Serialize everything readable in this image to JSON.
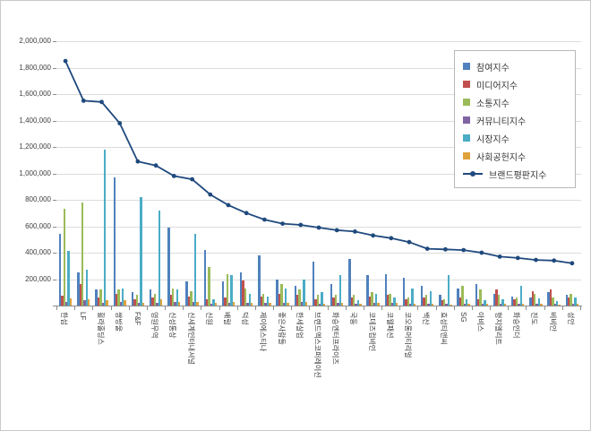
{
  "colors": {
    "background": "#FFFFFF",
    "frame": "#C9C9C9",
    "grid": "#DCDCDC",
    "axis": "#8C8C8C",
    "text": "#3F3F3F"
  },
  "chart_data": {
    "type": "bar",
    "title": "",
    "xlabel": "",
    "ylabel": "",
    "ylim": [
      0,
      2000000
    ],
    "y_tick_interval": 200000,
    "y_tick_labels": [
      "200,000",
      "400,000",
      "600,000",
      "800,000",
      "1,000,000",
      "1,200,000",
      "1,400,000",
      "1,600,000",
      "1,800,000",
      "2,000,000"
    ],
    "grid": true,
    "legend_position": "top-right",
    "categories": [
      "한섬",
      "LF",
      "휠라홀딩스",
      "쌍방울",
      "F&F",
      "영원무역",
      "신성통상",
      "신세계인터내셔널",
      "신원",
      "배럴",
      "덕성",
      "제이에스티나",
      "좋은사람들",
      "한세실업",
      "브랜드엑스코퍼레이션",
      "화승엔터프라이즈",
      "국동",
      "코데즈컴바인",
      "코웰패션",
      "코오롱머티리얼",
      "백산",
      "효성티앤씨",
      "SG",
      "아비스",
      "형지엘리트",
      "화승인더",
      "진도",
      "비비안",
      "성안"
    ],
    "series": [
      {
        "name": "참여지수",
        "color": "#4F81BD",
        "values": [
          545000,
          250000,
          120000,
          970000,
          100000,
          120000,
          590000,
          180000,
          420000,
          180000,
          250000,
          380000,
          200000,
          150000,
          330000,
          160000,
          350000,
          230000,
          240000,
          210000,
          150000,
          80000,
          130000,
          160000,
          90000,
          70000,
          60000,
          100000,
          80000
        ]
      },
      {
        "name": "미디어지수",
        "color": "#C0504D",
        "values": [
          75000,
          160000,
          60000,
          90000,
          50000,
          60000,
          80000,
          70000,
          50000,
          60000,
          190000,
          70000,
          90000,
          80000,
          50000,
          60000,
          60000,
          70000,
          80000,
          50000,
          60000,
          40000,
          60000,
          50000,
          120000,
          50000,
          110000,
          120000,
          60000
        ]
      },
      {
        "name": "소통지수",
        "color": "#9BBB59",
        "values": [
          735000,
          780000,
          120000,
          120000,
          80000,
          90000,
          130000,
          110000,
          290000,
          240000,
          130000,
          90000,
          160000,
          120000,
          80000,
          80000,
          80000,
          100000,
          90000,
          60000,
          80000,
          50000,
          150000,
          120000,
          80000,
          60000,
          90000,
          60000,
          90000
        ]
      },
      {
        "name": "커뮤니티지수",
        "color": "#8064A2",
        "values": [
          25000,
          40000,
          20000,
          30000,
          20000,
          20000,
          30000,
          25000,
          15000,
          20000,
          20000,
          20000,
          20000,
          30000,
          15000,
          20000,
          15000,
          20000,
          20000,
          15000,
          15000,
          15000,
          15000,
          15000,
          15000,
          15000,
          15000,
          15000,
          15000
        ]
      },
      {
        "name": "시장지수",
        "color": "#4BACC6",
        "values": [
          415000,
          270000,
          1180000,
          130000,
          820000,
          720000,
          120000,
          540000,
          45000,
          230000,
          90000,
          70000,
          130000,
          200000,
          100000,
          230000,
          40000,
          90000,
          60000,
          130000,
          110000,
          230000,
          50000,
          40000,
          50000,
          150000,
          55000,
          35000,
          60000
        ]
      },
      {
        "name": "사회공헌지수",
        "color": "#E0A23C",
        "values": [
          55000,
          50000,
          40000,
          40000,
          20000,
          50000,
          30000,
          30000,
          20000,
          30000,
          20000,
          20000,
          20000,
          30000,
          15000,
          20000,
          15000,
          20000,
          20000,
          15000,
          15000,
          10000,
          15000,
          15000,
          15000,
          15000,
          15000,
          10000,
          15000
        ]
      }
    ],
    "line_series": {
      "name": "브랜드평판지수",
      "color": "#1F497D",
      "values": [
        1850000,
        1550000,
        1540000,
        1380000,
        1090000,
        1060000,
        980000,
        955000,
        840000,
        760000,
        700000,
        650000,
        620000,
        610000,
        590000,
        570000,
        560000,
        530000,
        510000,
        480000,
        430000,
        425000,
        420000,
        400000,
        370000,
        360000,
        345000,
        340000,
        320000
      ]
    }
  }
}
